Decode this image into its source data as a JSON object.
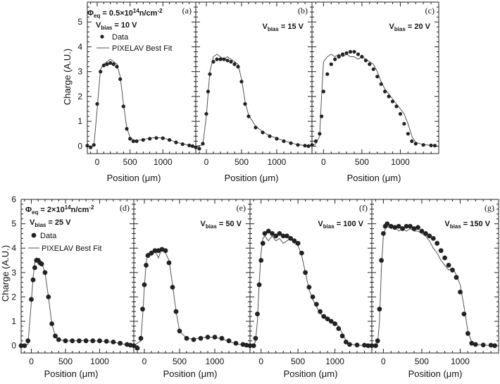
{
  "figure": {
    "rows": [
      {
        "ylabel": "Charge (A.U.)",
        "xlabel": "Position (μm)",
        "y_ticks": [
          "0",
          "1",
          "2",
          "3",
          "4",
          "5"
        ],
        "x_ticks": [
          "0",
          "500",
          "1000"
        ],
        "fluence": {
          "prefix": "Φ",
          "sub": "eq",
          "text": " = 0.5×10",
          "sup": "14",
          "unit": "n/cm",
          "unit_sup": "-2"
        },
        "legend": {
          "data": "Data",
          "fit": "PIXELAV Best Fit"
        }
      },
      {
        "ylabel": "Charge (A.U.)",
        "xlabel": "Position (μm)",
        "y_ticks": [
          "0",
          "1",
          "2",
          "3",
          "4",
          "5",
          "6"
        ],
        "x_ticks": [
          "0",
          "500",
          "1000"
        ],
        "fluence": {
          "prefix": "Φ",
          "sub": "eq",
          "text": " = 2×10",
          "sup": "14",
          "unit": "n/cm",
          "unit_sup": "-2"
        },
        "legend": {
          "data": "Data",
          "fit": "PIXELAV Best Fit"
        }
      }
    ],
    "panels": [
      {
        "letter": "(a)",
        "vbias_prefix": "V",
        "vbias_sub": "bias",
        "vbias_value": " = 10 V"
      },
      {
        "letter": "(b)",
        "vbias_prefix": "V",
        "vbias_sub": "bias",
        "vbias_value": " = 15 V"
      },
      {
        "letter": "(c)",
        "vbias_prefix": "V",
        "vbias_sub": "bias",
        "vbias_value": " = 20 V"
      },
      {
        "letter": "(d)",
        "vbias_prefix": "V",
        "vbias_sub": "bias",
        "vbias_value": " = 25 V"
      },
      {
        "letter": "(e)",
        "vbias_prefix": "V",
        "vbias_sub": "bias",
        "vbias_value": " = 50 V"
      },
      {
        "letter": "(f)",
        "vbias_prefix": "V",
        "vbias_sub": "bias",
        "vbias_value": " = 100 V"
      },
      {
        "letter": "(g)",
        "vbias_prefix": "V",
        "vbias_sub": "bias",
        "vbias_value": " = 150 V"
      }
    ]
  },
  "chart_data": [
    {
      "type": "scatter",
      "panel": "(a)",
      "title": "V_bias = 10 V",
      "xlabel": "Position (μm)",
      "ylabel": "Charge (A.U.)",
      "xlim": [
        -150,
        1500
      ],
      "ylim": [
        -0.3,
        5.8
      ],
      "series": [
        {
          "name": "Data",
          "style": "points",
          "x": [
            -150,
            -100,
            -50,
            0,
            50,
            100,
            150,
            200,
            250,
            300,
            350,
            400,
            450,
            500,
            550,
            600,
            700,
            800,
            900,
            1000,
            1100,
            1200,
            1300,
            1400,
            1450
          ],
          "y": [
            0.02,
            -0.05,
            0.05,
            1.7,
            3.0,
            3.25,
            3.3,
            3.35,
            3.3,
            3.2,
            2.7,
            1.6,
            0.7,
            0.3,
            0.2,
            0.2,
            0.25,
            0.3,
            0.33,
            0.32,
            0.25,
            0.15,
            0.08,
            0.03,
            0.0
          ]
        },
        {
          "name": "PIXELAV Best Fit",
          "style": "line",
          "x": [
            -150,
            -50,
            0,
            50,
            100,
            150,
            200,
            250,
            300,
            350,
            400,
            450,
            500,
            550,
            600,
            700,
            800,
            900,
            1000,
            1100,
            1200,
            1300,
            1450
          ],
          "y": [
            0.0,
            0.0,
            1.5,
            3.1,
            3.3,
            3.4,
            3.5,
            3.4,
            3.3,
            2.8,
            1.7,
            0.75,
            0.35,
            0.25,
            0.22,
            0.27,
            0.32,
            0.34,
            0.33,
            0.26,
            0.16,
            0.09,
            0.02
          ]
        }
      ]
    },
    {
      "type": "scatter",
      "panel": "(b)",
      "title": "V_bias = 15 V",
      "xlabel": "Position (μm)",
      "ylabel": "Charge (A.U.)",
      "xlim": [
        -150,
        1500
      ],
      "ylim": [
        -0.3,
        5.8
      ],
      "series": [
        {
          "name": "Data",
          "style": "points",
          "x": [
            -150,
            -100,
            -50,
            0,
            25,
            50,
            100,
            150,
            200,
            250,
            300,
            350,
            400,
            450,
            500,
            550,
            600,
            700,
            800,
            900,
            1000,
            1100,
            1200,
            1300,
            1400,
            1450
          ],
          "y": [
            -0.05,
            -0.1,
            0.1,
            1.3,
            2.2,
            2.9,
            3.4,
            3.5,
            3.5,
            3.5,
            3.45,
            3.4,
            3.3,
            3.2,
            2.6,
            1.7,
            1.2,
            0.75,
            0.55,
            0.4,
            0.3,
            0.2,
            0.12,
            0.05,
            0.02,
            0.0
          ]
        },
        {
          "name": "PIXELAV Best Fit",
          "style": "line",
          "x": [
            -150,
            -50,
            0,
            50,
            100,
            150,
            200,
            250,
            300,
            350,
            400,
            450,
            500,
            550,
            600,
            700,
            800,
            900,
            1000,
            1100,
            1200,
            1300,
            1450
          ],
          "y": [
            0.0,
            0.05,
            1.2,
            3.0,
            3.6,
            3.7,
            3.6,
            3.5,
            3.6,
            3.5,
            3.4,
            3.3,
            2.7,
            1.8,
            1.25,
            0.8,
            0.58,
            0.42,
            0.32,
            0.22,
            0.13,
            0.06,
            0.01
          ]
        }
      ]
    },
    {
      "type": "scatter",
      "panel": "(c)",
      "title": "V_bias = 20 V",
      "xlabel": "Position (μm)",
      "ylabel": "Charge (A.U.)",
      "xlim": [
        -150,
        1500
      ],
      "ylim": [
        -0.3,
        5.8
      ],
      "series": [
        {
          "name": "Data",
          "style": "points",
          "x": [
            -150,
            -100,
            -50,
            -25,
            0,
            50,
            100,
            150,
            200,
            250,
            300,
            350,
            400,
            450,
            500,
            550,
            600,
            650,
            700,
            750,
            800,
            850,
            900,
            950,
            1000,
            1050,
            1100,
            1150,
            1200,
            1300,
            1400,
            1450
          ],
          "y": [
            0.05,
            0.2,
            0.5,
            1.2,
            2.2,
            2.9,
            3.3,
            3.5,
            3.6,
            3.7,
            3.75,
            3.8,
            3.8,
            3.7,
            3.6,
            3.45,
            3.3,
            3.1,
            2.8,
            2.5,
            2.2,
            2.0,
            1.8,
            1.6,
            1.3,
            0.9,
            0.5,
            0.2,
            0.1,
            0.05,
            0.03,
            0.02
          ]
        },
        {
          "name": "PIXELAV Best Fit",
          "style": "line",
          "x": [
            -150,
            -100,
            -50,
            -25,
            0,
            50,
            100,
            150,
            200,
            250,
            300,
            350,
            400,
            450,
            500,
            550,
            600,
            650,
            700,
            750,
            800,
            850,
            900,
            950,
            1000,
            1050,
            1100,
            1150,
            1200,
            1300,
            1450
          ],
          "y": [
            0.0,
            0.1,
            0.4,
            2.0,
            3.4,
            3.6,
            3.7,
            3.6,
            3.7,
            3.6,
            3.7,
            3.6,
            3.6,
            3.5,
            3.6,
            3.5,
            3.4,
            3.3,
            3.0,
            2.6,
            2.3,
            2.1,
            1.9,
            1.7,
            1.5,
            1.3,
            0.9,
            0.4,
            0.15,
            0.06,
            0.02
          ]
        }
      ]
    },
    {
      "type": "scatter",
      "panel": "(d)",
      "title": "V_bias = 25 V",
      "xlabel": "Position (μm)",
      "ylabel": "Charge (A.U.)",
      "xlim": [
        -150,
        1500
      ],
      "ylim": [
        -0.3,
        6.0
      ],
      "series": [
        {
          "name": "Data",
          "style": "points",
          "x": [
            -150,
            -100,
            -50,
            0,
            25,
            50,
            75,
            100,
            125,
            150,
            200,
            250,
            300,
            350,
            400,
            500,
            600,
            700,
            800,
            900,
            1000,
            1100,
            1200,
            1300,
            1400,
            1450
          ],
          "y": [
            0.0,
            0.0,
            0.2,
            1.9,
            2.7,
            3.2,
            3.5,
            3.5,
            3.4,
            3.35,
            3.0,
            2.0,
            0.9,
            0.4,
            0.25,
            0.2,
            0.2,
            0.2,
            0.2,
            0.2,
            0.2,
            0.18,
            0.15,
            0.1,
            0.05,
            0.02
          ]
        },
        {
          "name": "PIXELAV Best Fit",
          "style": "line",
          "x": [
            -150,
            -50,
            0,
            25,
            50,
            75,
            100,
            150,
            200,
            250,
            300,
            350,
            400,
            500,
            600,
            700,
            800,
            900,
            1000,
            1100,
            1200,
            1300,
            1450
          ],
          "y": [
            0.0,
            0.05,
            1.8,
            2.8,
            3.4,
            3.6,
            3.55,
            3.4,
            3.0,
            2.0,
            0.9,
            0.4,
            0.25,
            0.2,
            0.2,
            0.21,
            0.2,
            0.2,
            0.19,
            0.17,
            0.14,
            0.09,
            0.02
          ]
        }
      ]
    },
    {
      "type": "scatter",
      "panel": "(e)",
      "title": "V_bias = 50 V",
      "xlabel": "Position (μm)",
      "ylabel": "Charge (A.U.)",
      "xlim": [
        -150,
        1500
      ],
      "ylim": [
        -0.3,
        6.0
      ],
      "series": [
        {
          "name": "Data",
          "style": "points",
          "x": [
            -150,
            -100,
            -50,
            -25,
            0,
            25,
            50,
            100,
            150,
            200,
            250,
            300,
            350,
            400,
            450,
            500,
            600,
            700,
            800,
            900,
            1000,
            1100,
            1200,
            1300,
            1400,
            1450
          ],
          "y": [
            0.0,
            -0.1,
            0.3,
            1.5,
            2.5,
            3.3,
            3.7,
            3.8,
            3.9,
            3.9,
            3.95,
            3.9,
            3.4,
            2.4,
            1.4,
            0.6,
            0.3,
            0.25,
            0.3,
            0.35,
            0.35,
            0.3,
            0.2,
            0.1,
            0.05,
            0.02
          ]
        },
        {
          "name": "PIXELAV Best Fit",
          "style": "line",
          "x": [
            -150,
            -50,
            -25,
            0,
            25,
            50,
            100,
            150,
            200,
            250,
            300,
            350,
            400,
            450,
            500,
            600,
            700,
            800,
            900,
            1000,
            1100,
            1200,
            1300,
            1450
          ],
          "y": [
            0.0,
            0.2,
            1.2,
            2.4,
            3.4,
            3.8,
            3.7,
            3.9,
            3.6,
            4.0,
            3.8,
            3.5,
            2.5,
            1.4,
            0.6,
            0.3,
            0.27,
            0.32,
            0.36,
            0.34,
            0.28,
            0.18,
            0.08,
            0.01
          ]
        }
      ]
    },
    {
      "type": "scatter",
      "panel": "(f)",
      "title": "V_bias = 100 V",
      "xlabel": "Position (μm)",
      "ylabel": "Charge (A.U.)",
      "xlim": [
        -150,
        1500
      ],
      "ylim": [
        -0.3,
        6.0
      ],
      "series": [
        {
          "name": "Data",
          "style": "points",
          "x": [
            -150,
            -100,
            -75,
            -50,
            -25,
            0,
            25,
            50,
            100,
            150,
            200,
            250,
            300,
            350,
            400,
            450,
            500,
            550,
            600,
            650,
            700,
            750,
            800,
            850,
            900,
            950,
            1000,
            1050,
            1100,
            1150,
            1200,
            1300,
            1400,
            1450
          ],
          "y": [
            0.0,
            0.0,
            0.3,
            1.3,
            2.5,
            3.5,
            4.2,
            4.6,
            4.7,
            4.6,
            4.5,
            4.6,
            4.5,
            4.5,
            4.4,
            4.3,
            4.2,
            3.8,
            3.0,
            2.4,
            2.0,
            1.7,
            1.4,
            1.2,
            1.1,
            1.0,
            0.9,
            0.7,
            0.4,
            0.15,
            0.05,
            0.03,
            0.02,
            0.0
          ]
        },
        {
          "name": "PIXELAV Best Fit",
          "style": "line",
          "x": [
            -150,
            -100,
            -75,
            -50,
            -25,
            0,
            25,
            50,
            100,
            150,
            200,
            250,
            300,
            350,
            400,
            450,
            500,
            550,
            600,
            650,
            700,
            750,
            800,
            850,
            900,
            950,
            1000,
            1050,
            1100,
            1150,
            1200,
            1300,
            1450
          ],
          "y": [
            0.0,
            0.0,
            0.2,
            1.0,
            2.6,
            3.8,
            4.4,
            4.5,
            4.3,
            4.5,
            4.3,
            4.4,
            4.2,
            4.3,
            4.4,
            4.2,
            4.1,
            3.7,
            3.0,
            2.3,
            1.9,
            1.6,
            1.35,
            1.15,
            1.05,
            1.0,
            0.95,
            0.8,
            0.5,
            0.2,
            0.06,
            0.02,
            0.0
          ]
        }
      ]
    },
    {
      "type": "scatter",
      "panel": "(g)",
      "title": "V_bias = 150 V",
      "xlabel": "Position (μm)",
      "ylabel": "Charge (A.U.)",
      "xlim": [
        -150,
        1500
      ],
      "ylim": [
        -0.3,
        6.0
      ],
      "series": [
        {
          "name": "Data",
          "style": "points",
          "x": [
            -150,
            -100,
            -75,
            -50,
            -25,
            0,
            25,
            50,
            100,
            150,
            200,
            250,
            300,
            350,
            400,
            450,
            500,
            550,
            600,
            650,
            700,
            750,
            800,
            850,
            900,
            950,
            1000,
            1050,
            1100,
            1150,
            1200,
            1300,
            1400,
            1450
          ],
          "y": [
            0.0,
            0.0,
            0.2,
            1.5,
            3.5,
            4.6,
            4.9,
            5.0,
            4.9,
            4.85,
            4.9,
            4.8,
            4.9,
            4.9,
            4.8,
            4.85,
            4.7,
            4.6,
            4.5,
            4.4,
            4.2,
            3.9,
            3.6,
            3.3,
            3.1,
            2.8,
            2.2,
            1.3,
            0.5,
            0.1,
            0.05,
            0.03,
            0.02,
            0.0
          ]
        },
        {
          "name": "PIXELAV Best Fit",
          "style": "line",
          "x": [
            -150,
            -100,
            -75,
            -50,
            -25,
            0,
            25,
            50,
            100,
            150,
            200,
            250,
            300,
            350,
            400,
            450,
            500,
            550,
            600,
            650,
            700,
            750,
            800,
            850,
            900,
            950,
            1000,
            1050,
            1100,
            1150,
            1200,
            1300,
            1450
          ],
          "y": [
            0.0,
            0.0,
            0.1,
            1.0,
            3.2,
            4.5,
            4.8,
            4.9,
            4.8,
            4.9,
            4.7,
            4.8,
            4.7,
            4.8,
            4.7,
            4.7,
            4.6,
            4.5,
            4.3,
            4.0,
            3.8,
            3.5,
            3.3,
            3.1,
            3.2,
            2.9,
            2.5,
            1.6,
            0.6,
            0.15,
            0.05,
            0.02,
            0.0
          ]
        }
      ]
    }
  ]
}
